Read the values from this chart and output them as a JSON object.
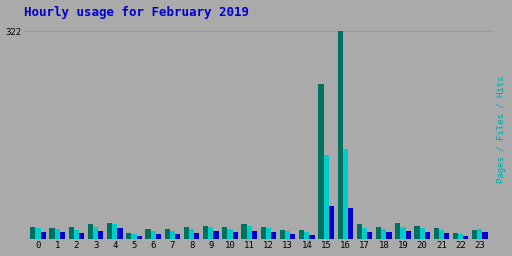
{
  "title": "Hourly usage for February 2019",
  "title_color": "#0000cc",
  "title_fontsize": 9,
  "hours": [
    0,
    1,
    2,
    3,
    4,
    5,
    6,
    7,
    8,
    9,
    10,
    11,
    12,
    13,
    14,
    15,
    16,
    17,
    18,
    19,
    20,
    21,
    22,
    23
  ],
  "pages": [
    18,
    17,
    18,
    22,
    25,
    9,
    15,
    15,
    18,
    20,
    18,
    22,
    18,
    14,
    14,
    240,
    322,
    22,
    18,
    24,
    20,
    16,
    9,
    14
  ],
  "files": [
    16,
    15,
    14,
    18,
    22,
    7,
    12,
    12,
    15,
    18,
    15,
    19,
    16,
    12,
    10,
    130,
    140,
    17,
    15,
    18,
    17,
    14,
    7,
    15
  ],
  "hits": [
    10,
    10,
    9,
    12,
    16,
    4,
    8,
    8,
    9,
    12,
    10,
    12,
    10,
    8,
    6,
    50,
    48,
    10,
    10,
    12,
    10,
    9,
    4,
    10
  ],
  "color_pages": "#007060",
  "color_files": "#00cccc",
  "color_hits": "#0000cc",
  "bg_color": "#aaaaaa",
  "plot_bg": "#aaaaaa",
  "ylabel_right": "Pages / Files / Hits",
  "ylabel_right_color": "#00aaaa",
  "ylim": [
    0,
    340
  ],
  "grid_color": "#999999",
  "bar_width": 0.27,
  "figwidth": 5.12,
  "figheight": 2.56,
  "dpi": 100
}
